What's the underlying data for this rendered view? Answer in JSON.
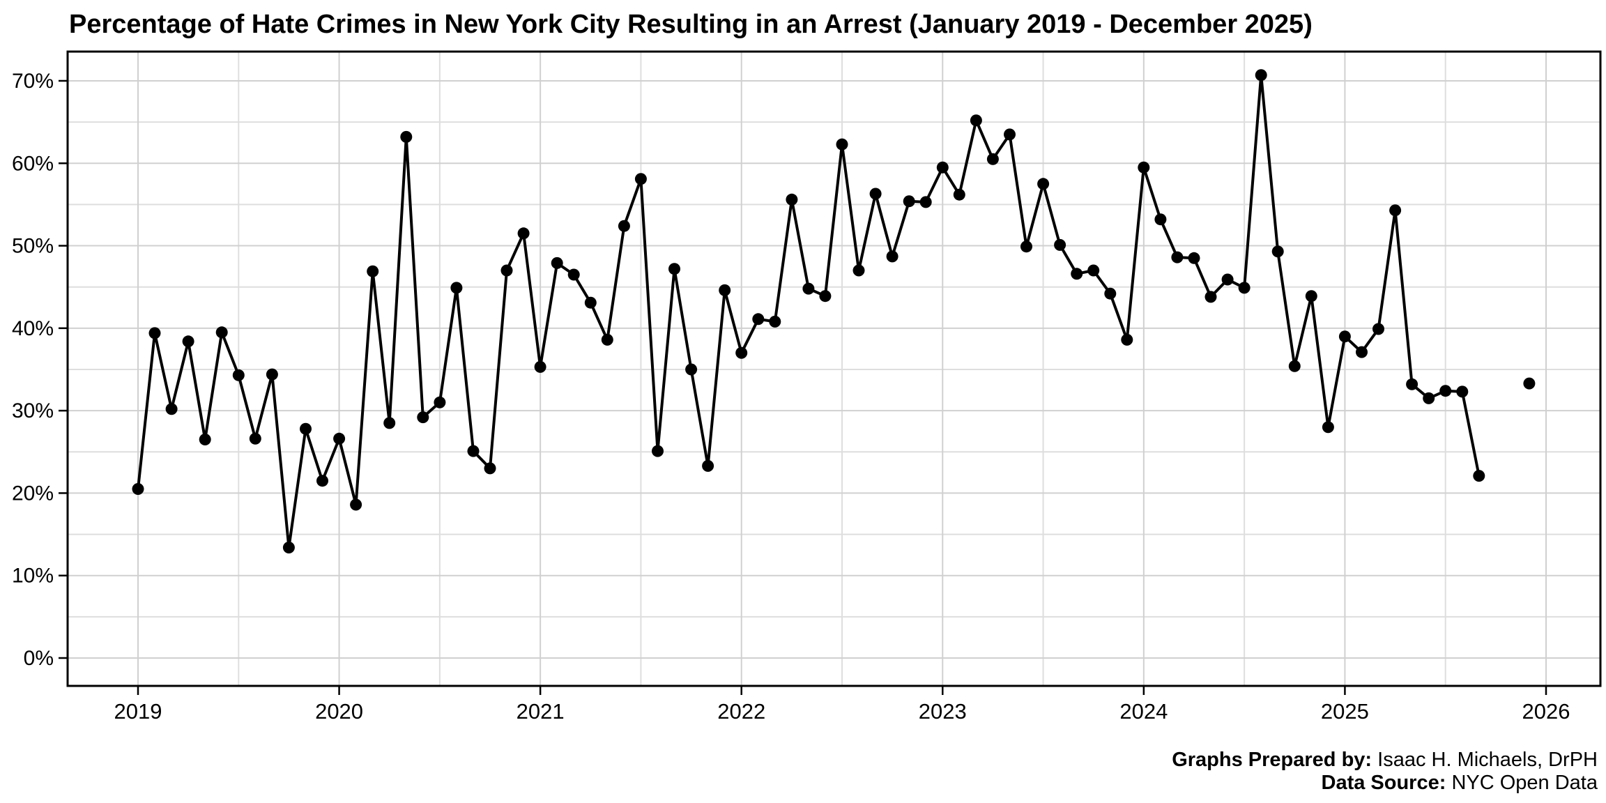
{
  "page": {
    "background": "#ffffff"
  },
  "chart": {
    "title": "Percentage of Hate Crimes in New York City Resulting in an Arrest (January 2019 - December 2025)",
    "caption": {
      "prepared_label": "Graphs Prepared by:",
      "prepared_value": " Isaac H. Michaels, DrPH",
      "source_label": "Data Source:",
      "source_value": " NYC Open Data"
    }
  },
  "chart_data": {
    "type": "line",
    "title": "Percentage of Hate Crimes in New York City Resulting in an Arrest (January 2019 - December 2025)",
    "xlabel": "",
    "ylabel": "",
    "ylim": [
      0,
      70
    ],
    "y_unit": "%",
    "y_major_ticks": [
      0,
      10,
      20,
      30,
      40,
      50,
      60,
      70
    ],
    "y_minor_ticks": [
      5,
      15,
      25,
      35,
      45,
      55,
      65
    ],
    "y_tick_labels": [
      "0%",
      "10%",
      "20%",
      "30%",
      "40%",
      "50%",
      "60%",
      "70%"
    ],
    "x_tick_labels": [
      "2019",
      "2020",
      "2021",
      "2022",
      "2023",
      "2024",
      "2025",
      "2026"
    ],
    "x_years": [
      2019,
      2020,
      2021,
      2022,
      2023,
      2024,
      2025,
      2026
    ],
    "grid": "major-and-minor",
    "legend": "none",
    "line_color": "#000000",
    "point_color": "#000000",
    "panel_border_color": "#000000",
    "grid_major_color": "#d0d0d0",
    "grid_minor_color": "#dedede",
    "months": [
      "2019-01",
      "2019-02",
      "2019-03",
      "2019-04",
      "2019-05",
      "2019-06",
      "2019-07",
      "2019-08",
      "2019-09",
      "2019-10",
      "2019-11",
      "2019-12",
      "2020-01",
      "2020-02",
      "2020-03",
      "2020-04",
      "2020-05",
      "2020-06",
      "2020-07",
      "2020-08",
      "2020-09",
      "2020-10",
      "2020-11",
      "2020-12",
      "2021-01",
      "2021-02",
      "2021-03",
      "2021-04",
      "2021-05",
      "2021-06",
      "2021-07",
      "2021-08",
      "2021-09",
      "2021-10",
      "2021-11",
      "2021-12",
      "2022-01",
      "2022-02",
      "2022-03",
      "2022-04",
      "2022-05",
      "2022-06",
      "2022-07",
      "2022-08",
      "2022-09",
      "2022-10",
      "2022-11",
      "2022-12",
      "2023-01",
      "2023-02",
      "2023-03",
      "2023-04",
      "2023-05",
      "2023-06",
      "2023-07",
      "2023-08",
      "2023-09",
      "2023-10",
      "2023-11",
      "2023-12",
      "2024-01",
      "2024-02",
      "2024-03",
      "2024-04",
      "2024-05",
      "2024-06",
      "2024-07",
      "2024-08",
      "2024-09",
      "2024-10",
      "2024-11",
      "2024-12",
      "2025-01",
      "2025-02",
      "2025-03",
      "2025-04",
      "2025-05",
      "2025-06",
      "2025-07",
      "2025-08",
      "2025-09",
      "2025-10",
      "2025-11",
      "2025-12"
    ],
    "values": [
      20.5,
      39.4,
      30.2,
      38.4,
      26.5,
      39.5,
      34.3,
      26.6,
      34.4,
      13.4,
      27.8,
      21.5,
      26.6,
      18.6,
      46.9,
      28.5,
      63.2,
      29.2,
      31.0,
      44.9,
      25.1,
      23.0,
      47.0,
      51.5,
      35.3,
      47.9,
      46.5,
      43.1,
      38.6,
      52.4,
      58.1,
      25.1,
      47.2,
      35.0,
      23.3,
      44.6,
      37.0,
      41.1,
      40.8,
      55.6,
      44.8,
      43.9,
      62.3,
      47.0,
      56.3,
      48.7,
      55.4,
      55.3,
      59.5,
      56.2,
      65.2,
      60.5,
      63.5,
      49.9,
      57.5,
      50.1,
      46.6,
      47.0,
      44.2,
      38.6,
      59.5,
      53.2,
      48.6,
      48.5,
      43.8,
      45.9,
      44.9,
      70.7,
      49.3,
      35.4,
      43.9,
      28.0,
      39.0,
      37.1,
      39.9,
      54.3,
      33.2,
      31.5,
      32.4,
      32.3,
      22.1,
      null,
      null,
      33.3
    ]
  }
}
